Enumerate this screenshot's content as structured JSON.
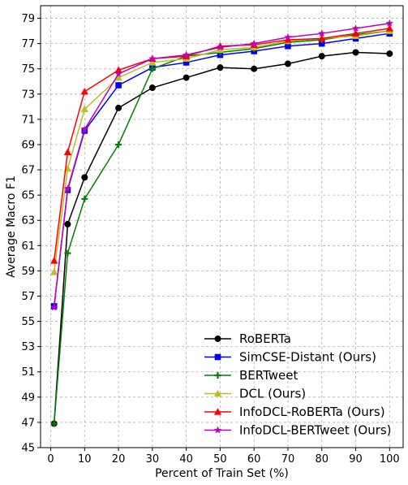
{
  "chart_data": {
    "type": "line",
    "title": "",
    "xlabel": "Percent of Train Set (%)",
    "ylabel": "Average Macro F1",
    "x": [
      1,
      5,
      10,
      20,
      30,
      40,
      50,
      60,
      70,
      80,
      90,
      100
    ],
    "x_ticks": [
      0,
      10,
      20,
      30,
      40,
      50,
      60,
      70,
      80,
      90,
      100
    ],
    "y_ticks": [
      45,
      47,
      49,
      51,
      53,
      55,
      57,
      59,
      61,
      63,
      65,
      67,
      69,
      71,
      73,
      75,
      77,
      79
    ],
    "xlim": [
      -3,
      104
    ],
    "ylim": [
      45,
      80
    ],
    "grid": true,
    "legend_position": "bottom-right",
    "series": [
      {
        "name": "RoBERTa",
        "color": "#000000",
        "marker": "circle",
        "values": [
          46.9,
          62.7,
          66.4,
          71.9,
          73.5,
          74.3,
          75.1,
          75.0,
          75.4,
          76.0,
          76.3,
          76.2
        ]
      },
      {
        "name": "SimCSE-Distant (Ours)",
        "color": "#0000ff",
        "marker": "square",
        "values": [
          56.2,
          65.4,
          70.1,
          73.7,
          75.1,
          75.5,
          76.1,
          76.4,
          76.8,
          77.0,
          77.4,
          77.8
        ]
      },
      {
        "name": "BERTweet",
        "color": "#008000",
        "marker": "plus",
        "values": [
          46.9,
          60.4,
          64.7,
          69.0,
          75.0,
          76.0,
          76.3,
          76.6,
          77.1,
          77.3,
          77.7,
          78.0
        ]
      },
      {
        "name": "DCL (Ours)",
        "color": "#bcbd22",
        "marker": "triangle",
        "values": [
          58.9,
          67.1,
          71.8,
          74.3,
          75.5,
          75.8,
          76.5,
          76.7,
          77.2,
          77.4,
          77.6,
          78.0
        ]
      },
      {
        "name": "InfoDCL-RoBERTa (Ours)",
        "color": "#ff0000",
        "marker": "triangle",
        "values": [
          59.8,
          68.4,
          73.2,
          74.9,
          75.8,
          76.0,
          76.8,
          76.9,
          77.3,
          77.4,
          77.8,
          78.2
        ]
      },
      {
        "name": "InfoDCL-BERTweet (Ours)",
        "color": "#bf00bf",
        "marker": "star",
        "values": [
          56.1,
          65.5,
          70.2,
          74.6,
          75.8,
          76.1,
          76.7,
          77.0,
          77.5,
          77.8,
          78.2,
          78.6
        ]
      }
    ]
  }
}
